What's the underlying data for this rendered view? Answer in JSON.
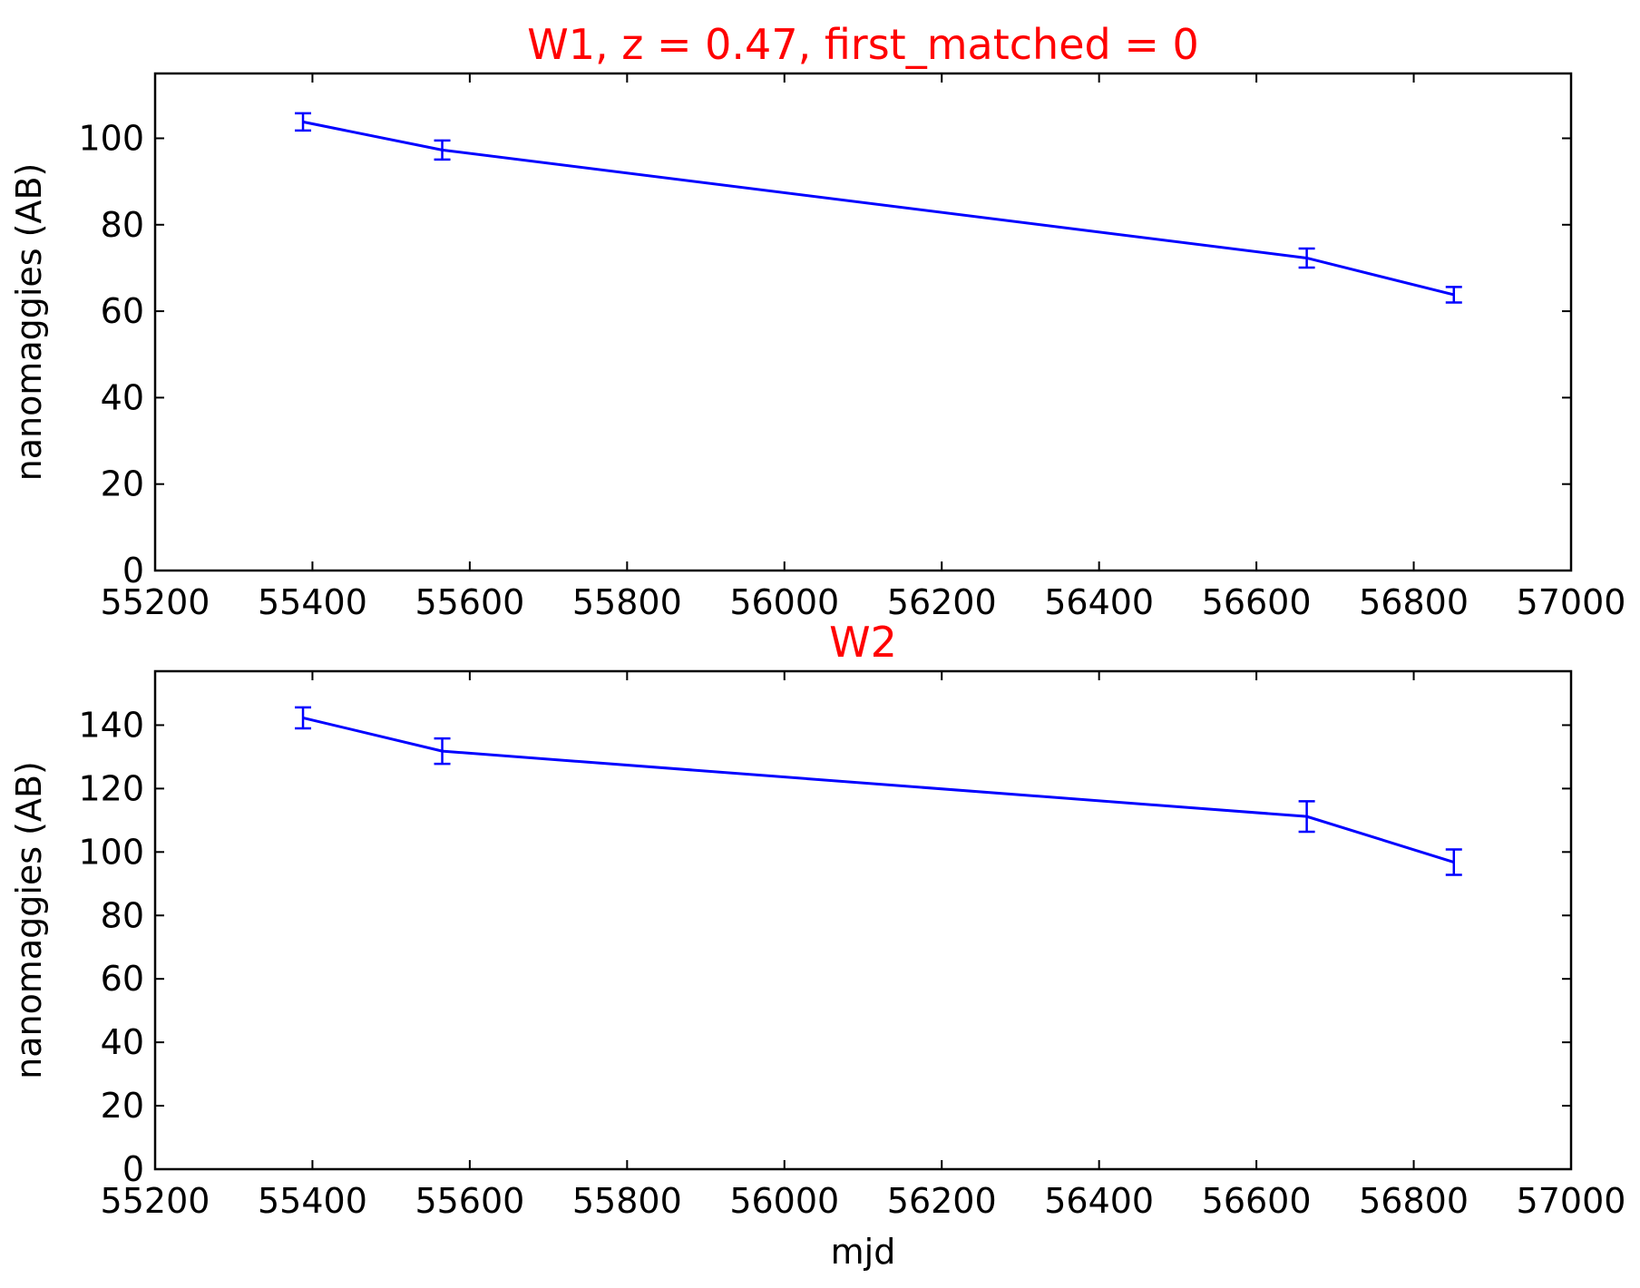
{
  "colors": {
    "series": "#0000ff",
    "title": "#ff0000",
    "axes": "#000000"
  },
  "chart_data": [
    {
      "type": "line",
      "title": "W1, z = 0.47, first_matched = 0",
      "xlabel": "",
      "ylabel": "nanomaggies (AB)",
      "xlim": [
        55200,
        57000
      ],
      "ylim": [
        0,
        115
      ],
      "xticks": [
        55200,
        55400,
        55600,
        55800,
        56000,
        56200,
        56400,
        56600,
        56800,
        57000
      ],
      "yticks": [
        0,
        20,
        40,
        60,
        80,
        100
      ],
      "grid": false,
      "error_bars": true,
      "series": [
        {
          "x": [
            55388,
            55565,
            56664,
            56851
          ],
          "y": [
            103.8,
            97.3,
            72.3,
            63.8
          ],
          "err": [
            2.0,
            2.2,
            2.2,
            1.8
          ]
        }
      ]
    },
    {
      "type": "line",
      "title": "W2",
      "xlabel": "mjd",
      "ylabel": "nanomaggies (AB)",
      "xlim": [
        55200,
        57000
      ],
      "ylim": [
        0,
        157
      ],
      "xticks": [
        55200,
        55400,
        55600,
        55800,
        56000,
        56200,
        56400,
        56600,
        56800,
        57000
      ],
      "yticks": [
        0,
        20,
        40,
        60,
        80,
        100,
        120,
        140
      ],
      "grid": false,
      "error_bars": true,
      "series": [
        {
          "x": [
            55388,
            55565,
            56664,
            56851
          ],
          "y": [
            142.3,
            131.8,
            111.2,
            96.8
          ],
          "err": [
            3.3,
            4.0,
            4.8,
            4.0
          ]
        }
      ]
    }
  ]
}
